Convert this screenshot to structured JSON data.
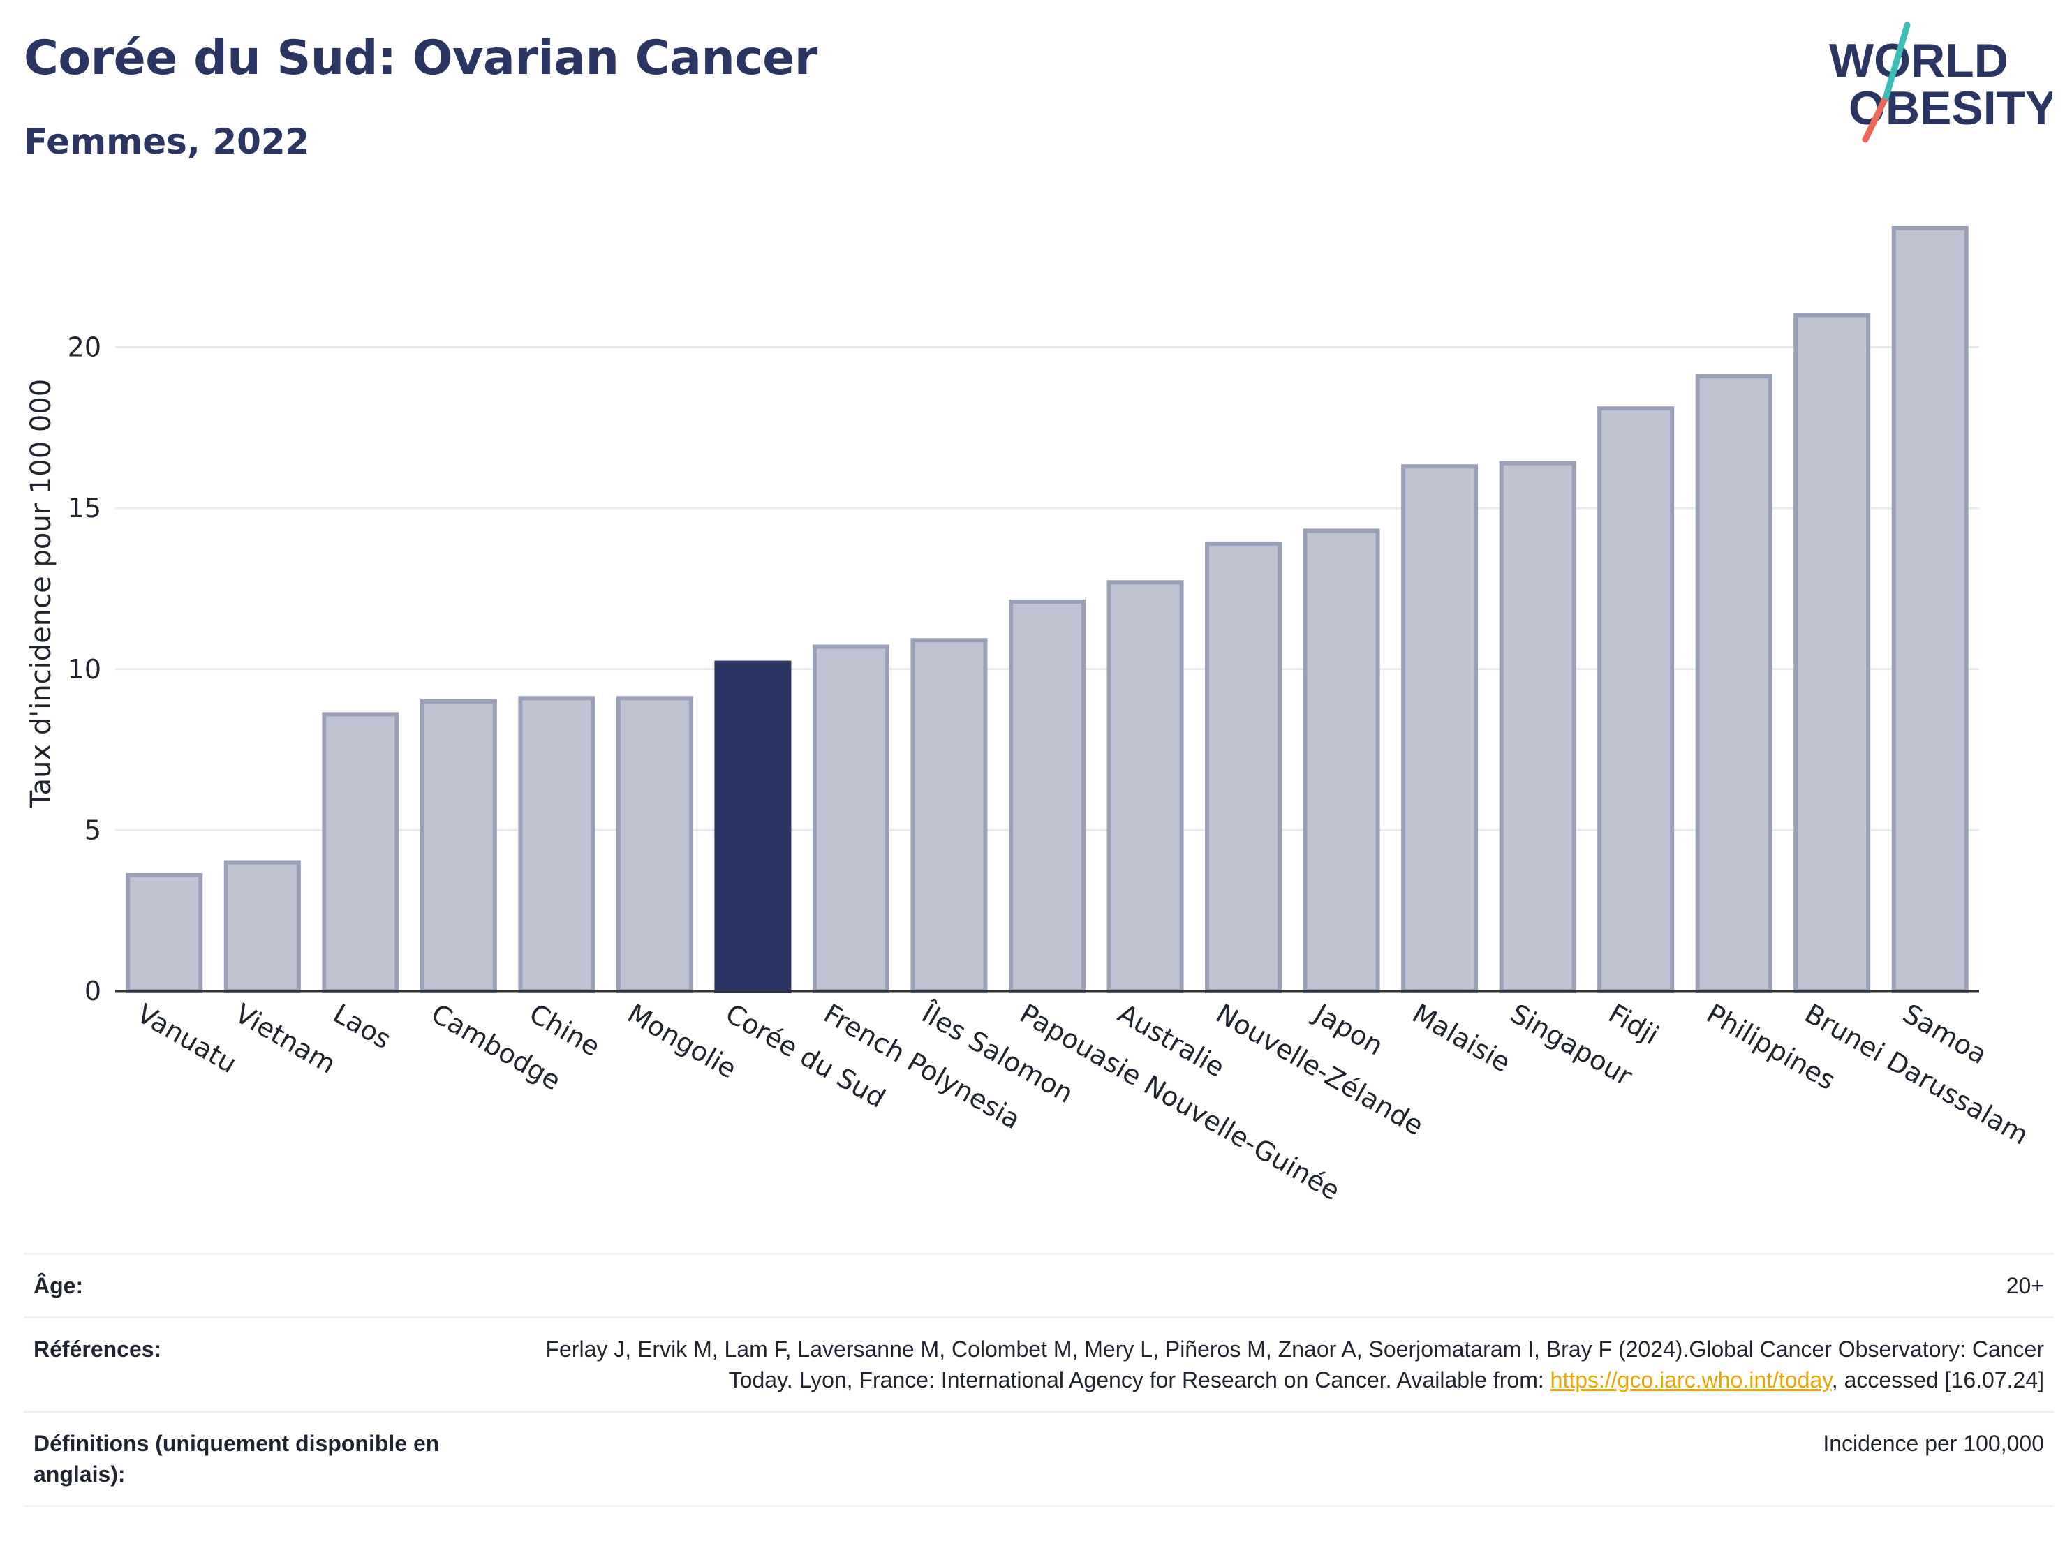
{
  "header": {
    "title": "Corée du Sud: Ovarian Cancer",
    "subtitle": "Femmes, 2022"
  },
  "logo": {
    "line1": "WORLD",
    "line2": "OBESITY"
  },
  "chart_data": {
    "type": "bar",
    "title": "Corée du Sud: Ovarian Cancer",
    "subtitle": "Femmes, 2022",
    "ylabel": "Taux d'incidence pour 100 000",
    "xlabel": "",
    "ylim": [
      0,
      24.5
    ],
    "yticks": [
      0,
      5,
      10,
      15,
      20
    ],
    "grid": true,
    "highlight": "Corée du Sud",
    "categories": [
      "Vanuatu",
      "Vietnam",
      "Laos",
      "Cambodge",
      "Chine",
      "Mongolie",
      "Corée du Sud",
      "French Polynesia",
      "Îles Salomon",
      "Papouasie Nouvelle-Guinée",
      "Australie",
      "Nouvelle-Zélande",
      "Japon",
      "Malaisie",
      "Singapour",
      "Fidji",
      "Philippines",
      "Brunei Darussalam",
      "Samoa"
    ],
    "values": [
      3.6,
      4.0,
      8.6,
      9.0,
      9.1,
      9.1,
      10.2,
      10.7,
      10.9,
      12.1,
      12.7,
      13.9,
      14.3,
      16.3,
      16.4,
      18.1,
      19.1,
      21.0,
      23.7
    ],
    "colors": {
      "bar": "#bfc2d0",
      "bar_border": "#9aa0b8",
      "highlight": "#2b3563",
      "grid": "#e9eaf0",
      "axis": "#333333"
    }
  },
  "info": {
    "age_label": "Âge:",
    "age_value": "20+",
    "ref_label": "Références:",
    "ref_text": "Ferlay J, Ervik M, Lam F, Laversanne M, Colombet M, Mery L, Piñeros M, Znaor A, Soerjomataram I, Bray F (2024).Global Cancer Observatory: Cancer Today. Lyon, France: International Agency for Research on Cancer. Available from: ",
    "ref_link": "https://gco.iarc.who.int/today",
    "ref_tail": ", accessed [16.07.24]",
    "def_label": "Définitions (uniquement disponible en anglais):",
    "def_value": "Incidence per 100,000"
  }
}
